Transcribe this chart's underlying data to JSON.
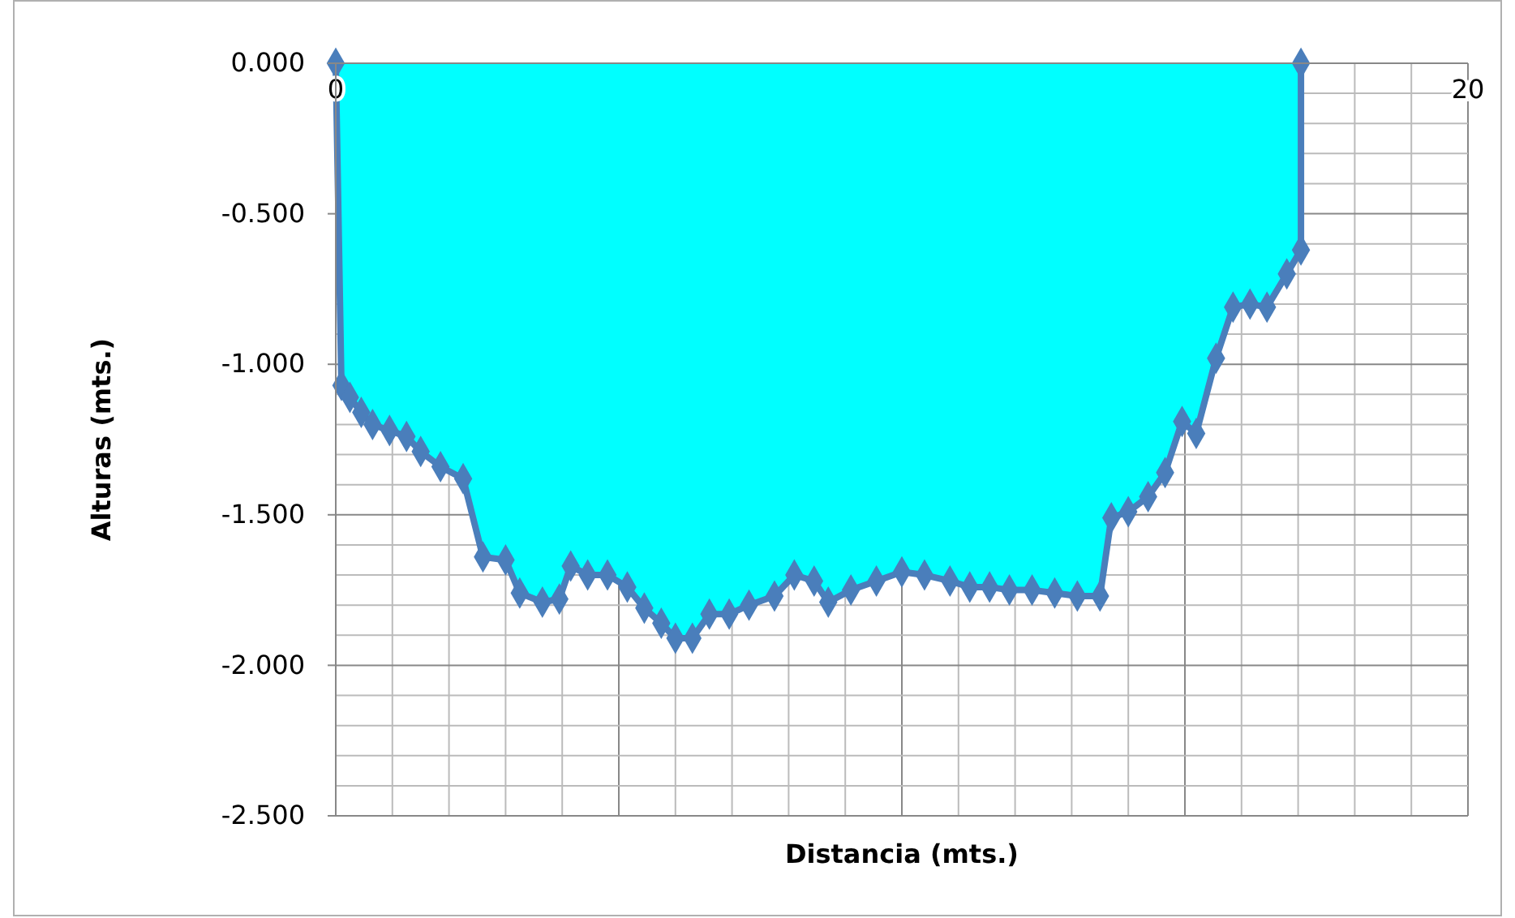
{
  "chart_data": {
    "type": "area",
    "xlabel": "Distancia  (mts.)",
    "ylabel": "Alturas (mts.)",
    "marker": "diamond",
    "grid": true,
    "color": "#00ffff",
    "xlim": [
      0,
      20
    ],
    "ylim": [
      -2.5,
      0
    ],
    "xticks": [
      0,
      {
        "value": 1,
        "label": null
      },
      {
        "value": 2,
        "label": null
      },
      {
        "value": 3,
        "label": null
      },
      {
        "value": 4,
        "label": null
      },
      {
        "value": 5,
        "label": null
      },
      {
        "value": 6,
        "label": null
      },
      {
        "value": 7,
        "label": null
      },
      {
        "value": 8,
        "label": null
      },
      {
        "value": 9,
        "label": null
      },
      {
        "value": 10,
        "label": null
      },
      {
        "value": 11,
        "label": null
      },
      {
        "value": 12,
        "label": null
      },
      {
        "value": 13,
        "label": null
      },
      {
        "value": 14,
        "label": null
      },
      {
        "value": 15,
        "label": null
      },
      {
        "value": 16,
        "label": null
      },
      {
        "value": 17,
        "label": null
      },
      {
        "value": 18,
        "label": null
      },
      {
        "value": 19,
        "label": null
      },
      20
    ],
    "yticks": [
      {
        "value": -2.5,
        "label": "-2.500"
      },
      {
        "value": -2.4,
        "label": null
      },
      {
        "value": -2.3,
        "label": null
      },
      {
        "value": -2.2,
        "label": null
      },
      {
        "value": -2.1,
        "label": null
      },
      {
        "value": -2.0,
        "label": "-2.000"
      },
      {
        "value": -1.9,
        "label": null
      },
      {
        "value": -1.8,
        "label": null
      },
      {
        "value": -1.7,
        "label": null
      },
      {
        "value": -1.6,
        "label": null
      },
      {
        "value": -1.5,
        "label": "-1.500"
      },
      {
        "value": -1.4,
        "label": null
      },
      {
        "value": -1.3,
        "label": null
      },
      {
        "value": -1.2,
        "label": null
      },
      {
        "value": -1.1,
        "label": null
      },
      {
        "value": -1.0,
        "label": "-1.000"
      },
      {
        "value": -0.9,
        "label": null
      },
      {
        "value": -0.8,
        "label": null
      },
      {
        "value": -0.7,
        "label": null
      },
      {
        "value": -0.6,
        "label": null
      },
      {
        "value": -0.5,
        "label": "-0.500"
      },
      {
        "value": -0.4,
        "label": null
      },
      {
        "value": -0.3,
        "label": null
      },
      {
        "value": -0.2,
        "label": null
      },
      {
        "value": -0.1,
        "label": null
      },
      {
        "value": 0,
        "label": "0.000"
      }
    ],
    "series": [
      {
        "color": "#4a7ebb",
        "x": [
          0,
          0.1,
          0.25,
          0.45,
          0.65,
          0.95,
          1.25,
          1.5,
          1.85,
          2.25,
          2.6,
          3.0,
          3.25,
          3.65,
          3.95,
          4.15,
          4.45,
          4.8,
          5.15,
          5.45,
          5.75,
          6.0,
          6.3,
          6.6,
          6.95,
          7.3,
          7.75,
          8.1,
          8.45,
          8.7,
          9.1,
          9.55,
          10.0,
          10.4,
          10.85,
          11.2,
          11.55,
          11.9,
          12.3,
          12.7,
          13.1,
          13.5,
          13.7,
          14.0,
          14.35,
          14.65,
          14.95,
          15.2,
          15.55,
          15.85,
          16.15,
          16.45,
          16.8,
          17.05,
          17.05
        ],
        "values": [
          0,
          -1.07,
          -1.11,
          -1.16,
          -1.2,
          -1.22,
          -1.24,
          -1.29,
          -1.34,
          -1.38,
          -1.64,
          -1.65,
          -1.76,
          -1.79,
          -1.78,
          -1.67,
          -1.7,
          -1.7,
          -1.74,
          -1.81,
          -1.86,
          -1.91,
          -1.91,
          -1.83,
          -1.83,
          -1.8,
          -1.77,
          -1.7,
          -1.72,
          -1.79,
          -1.75,
          -1.72,
          -1.69,
          -1.7,
          -1.72,
          -1.74,
          -1.74,
          -1.75,
          -1.75,
          -1.76,
          -1.77,
          -1.77,
          -1.51,
          -1.49,
          -1.44,
          -1.36,
          -1.19,
          -1.23,
          -0.98,
          -0.81,
          -0.8,
          -0.81,
          -0.7,
          -0.62,
          0
        ]
      }
    ]
  }
}
